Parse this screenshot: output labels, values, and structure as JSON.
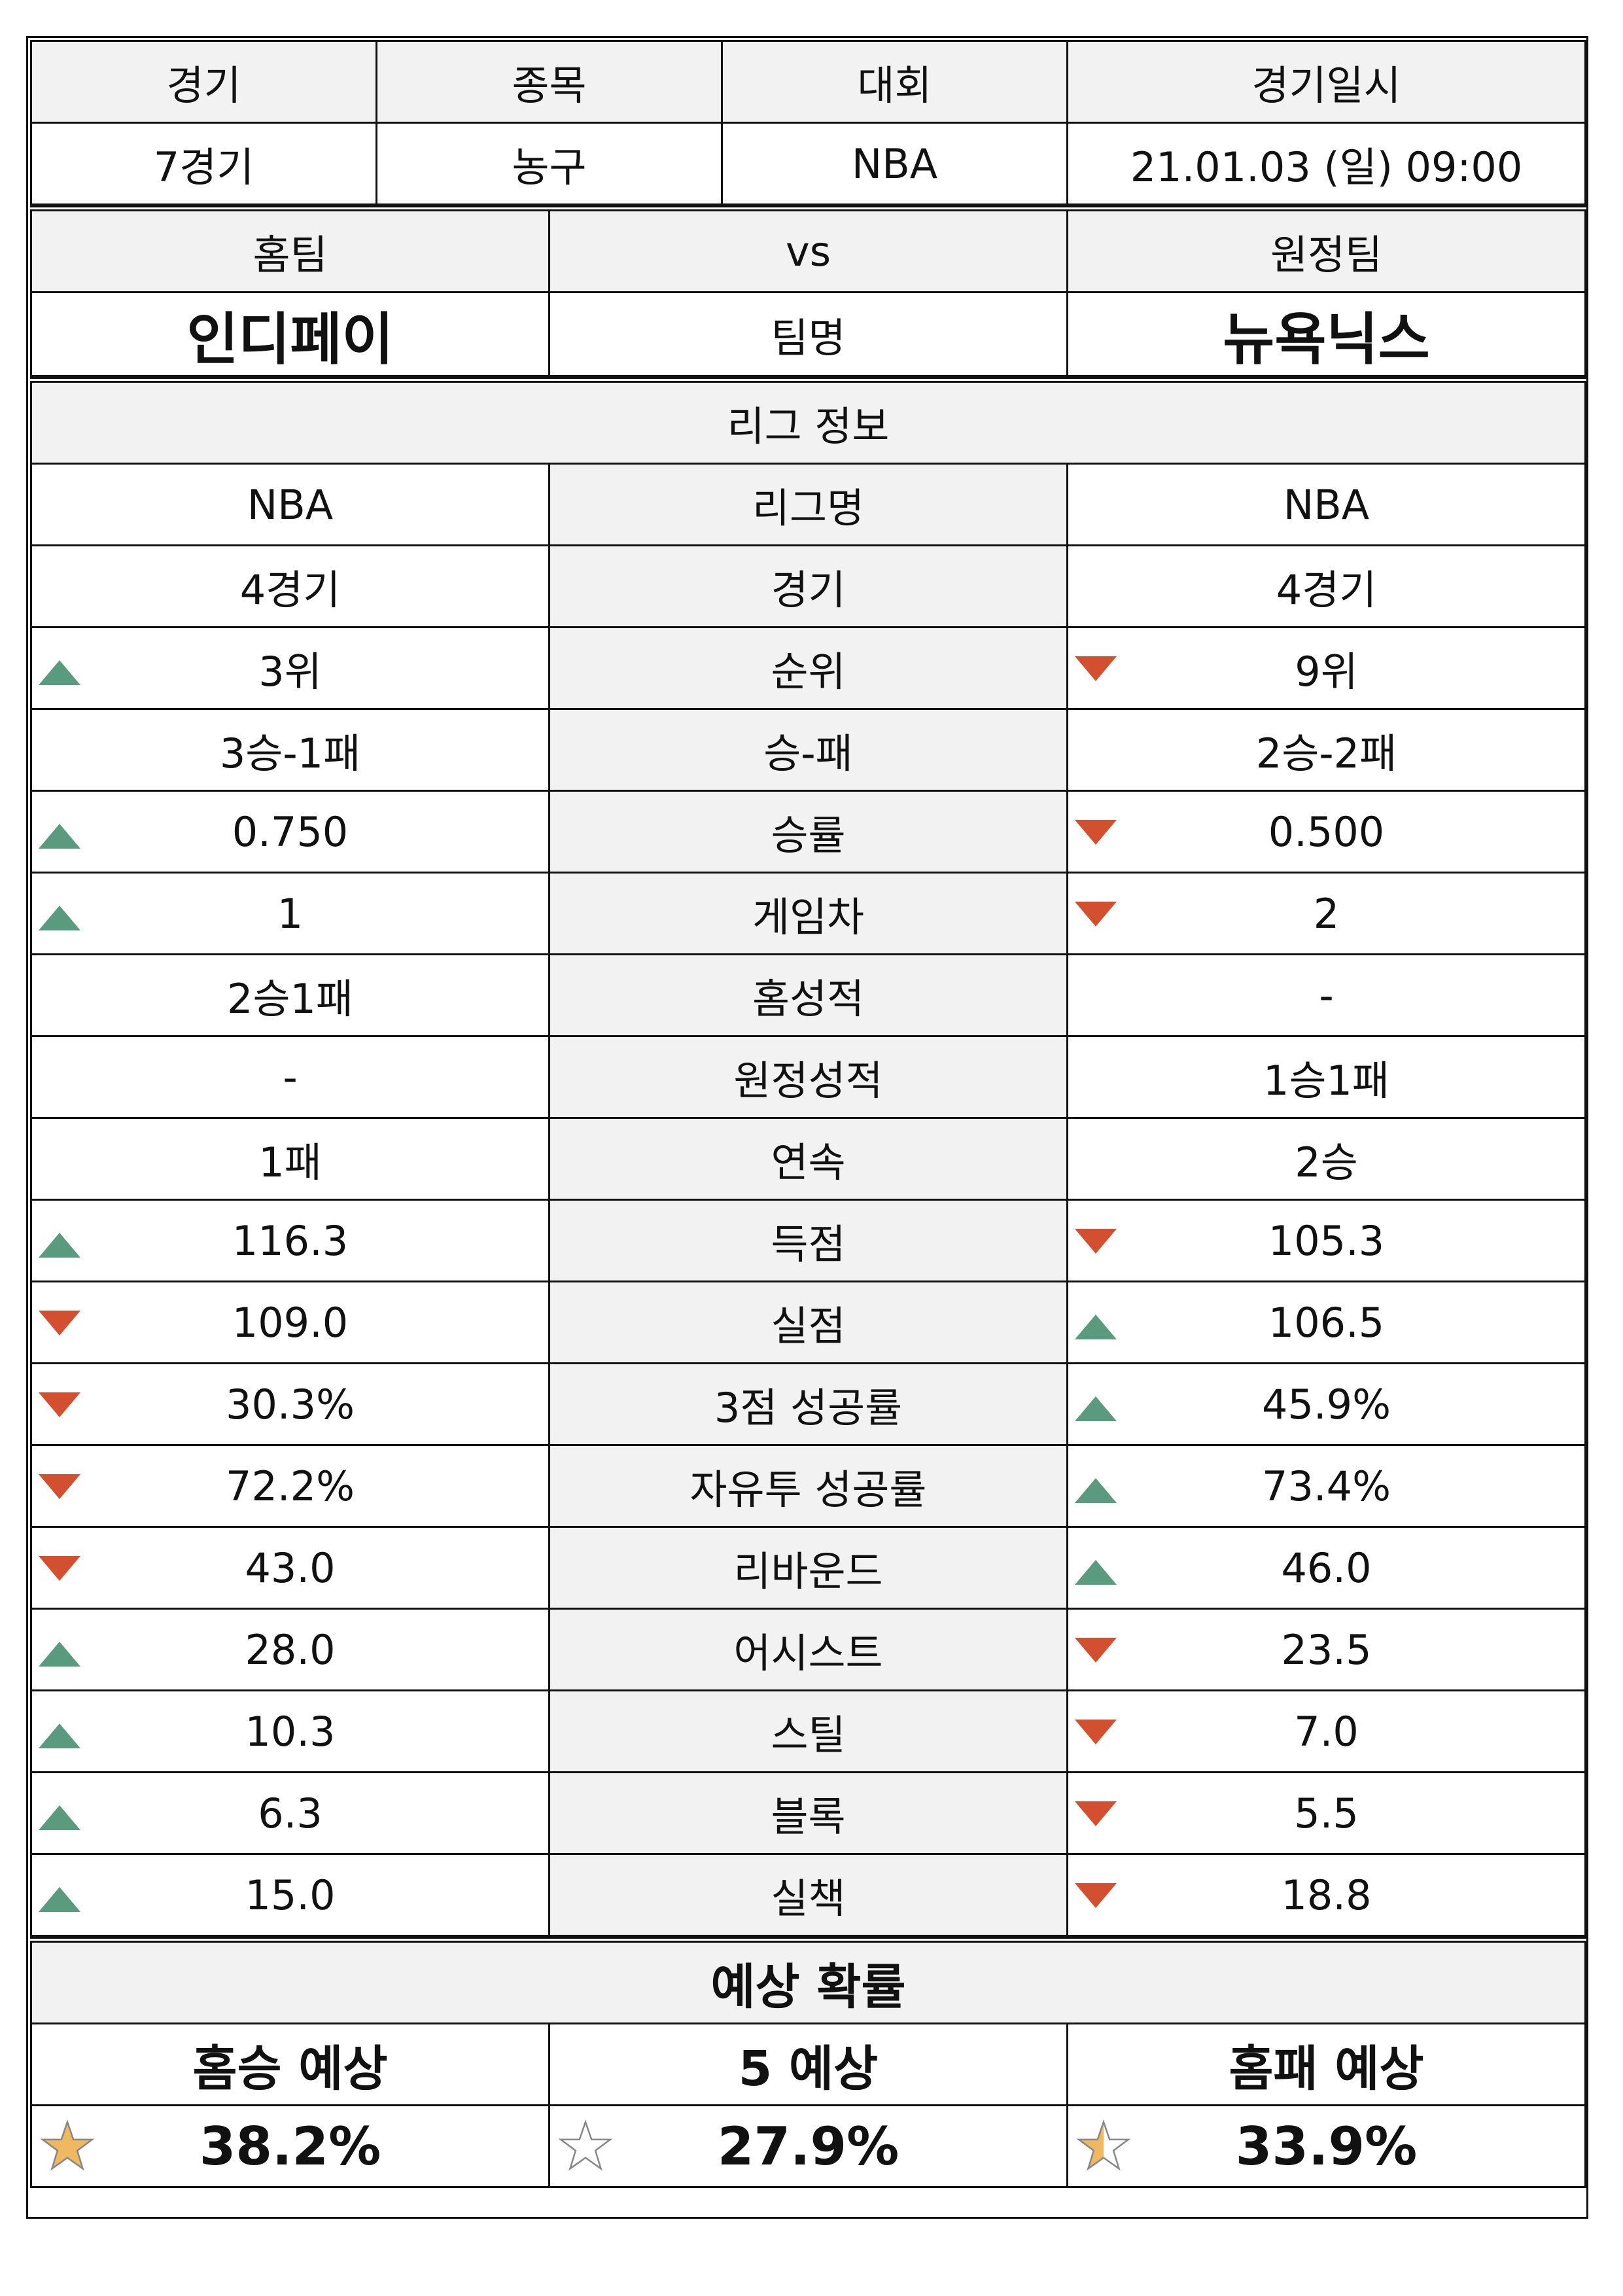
{
  "match": {
    "headers": [
      "경기",
      "종목",
      "대회",
      "경기일시"
    ],
    "values": [
      "7경기",
      "농구",
      "NBA",
      "21.01.03 (일) 09:00"
    ]
  },
  "teams": {
    "home_label": "홈팀",
    "vs_label": "vs",
    "away_label": "원정팀",
    "home_name": "인디페이",
    "name_label": "팀명",
    "away_name": "뉴욕닉스"
  },
  "league": {
    "title": "리그 정보",
    "rows": [
      {
        "label": "리그명",
        "home": "NBA",
        "away": "NBA",
        "home_trend": "",
        "away_trend": ""
      },
      {
        "label": "경기",
        "home": "4경기",
        "away": "4경기",
        "home_trend": "",
        "away_trend": ""
      },
      {
        "label": "순위",
        "home": "3위",
        "away": "9위",
        "home_trend": "up",
        "away_trend": "down"
      },
      {
        "label": "승-패",
        "home": "3승-1패",
        "away": "2승-2패",
        "home_trend": "",
        "away_trend": ""
      },
      {
        "label": "승률",
        "home": "0.750",
        "away": "0.500",
        "home_trend": "up",
        "away_trend": "down"
      },
      {
        "label": "게임차",
        "home": "1",
        "away": "2",
        "home_trend": "up",
        "away_trend": "down"
      },
      {
        "label": "홈성적",
        "home": "2승1패",
        "away": "-",
        "home_trend": "",
        "away_trend": ""
      },
      {
        "label": "원정성적",
        "home": "-",
        "away": "1승1패",
        "home_trend": "",
        "away_trend": ""
      },
      {
        "label": "연속",
        "home": "1패",
        "away": "2승",
        "home_trend": "",
        "away_trend": ""
      },
      {
        "label": "득점",
        "home": "116.3",
        "away": "105.3",
        "home_trend": "up",
        "away_trend": "down"
      },
      {
        "label": "실점",
        "home": "109.0",
        "away": "106.5",
        "home_trend": "down",
        "away_trend": "up"
      },
      {
        "label": "3점 성공률",
        "home": "30.3%",
        "away": "45.9%",
        "home_trend": "down",
        "away_trend": "up"
      },
      {
        "label": "자유투 성공률",
        "home": "72.2%",
        "away": "73.4%",
        "home_trend": "down",
        "away_trend": "up"
      },
      {
        "label": "리바운드",
        "home": "43.0",
        "away": "46.0",
        "home_trend": "down",
        "away_trend": "up"
      },
      {
        "label": "어시스트",
        "home": "28.0",
        "away": "23.5",
        "home_trend": "up",
        "away_trend": "down"
      },
      {
        "label": "스틸",
        "home": "10.3",
        "away": "7.0",
        "home_trend": "up",
        "away_trend": "down"
      },
      {
        "label": "블록",
        "home": "6.3",
        "away": "5.5",
        "home_trend": "up",
        "away_trend": "down"
      },
      {
        "label": "실책",
        "home": "15.0",
        "away": "18.8",
        "home_trend": "up",
        "away_trend": "down"
      }
    ]
  },
  "prediction": {
    "title": "예상 확률",
    "labels": [
      "홈승 예상",
      "5 예상",
      "홈패 예상"
    ],
    "values": [
      "38.2%",
      "27.9%",
      "33.9%"
    ],
    "stars": [
      "full",
      "empty",
      "half"
    ]
  },
  "colors": {
    "up": "#5a9a7e",
    "down": "#d2502f",
    "star": "#f0b860",
    "header_bg": "#f2f2f2"
  }
}
